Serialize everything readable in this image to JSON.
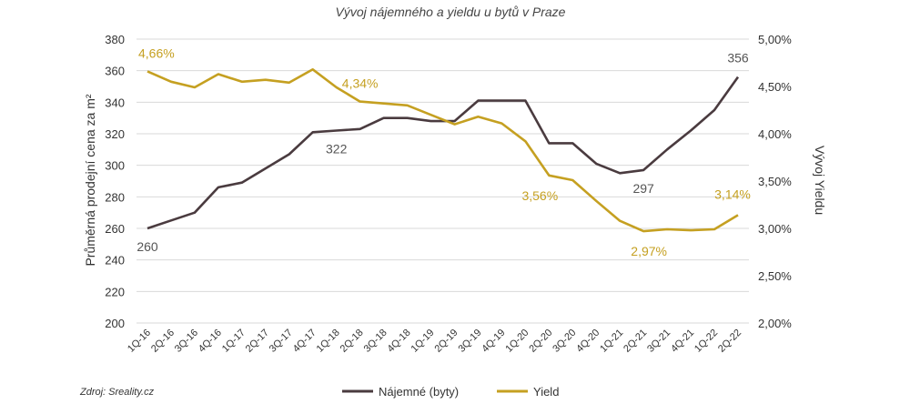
{
  "chart_data": {
    "type": "line",
    "title": "Vývoj nájemného a yieldu u bytů v Praze",
    "ylabel": "Průměrná prodejní cena za m²",
    "y2label": "Vývoj Yieldu",
    "source": "Zdroj: Sreality.cz",
    "x": [
      "1Q-16",
      "2Q-16",
      "3Q-16",
      "4Q-16",
      "1Q-17",
      "2Q-17",
      "3Q-17",
      "4Q-17",
      "1Q-18",
      "2Q-18",
      "3Q-18",
      "4Q-18",
      "1Q-19",
      "2Q-19",
      "3Q-19",
      "4Q-19",
      "1Q-20",
      "2Q-20",
      "3Q-20",
      "4Q-20",
      "1Q-21",
      "2Q-21",
      "3Q-21",
      "4Q-21",
      "1Q-22",
      "2Q-22"
    ],
    "ylim": [
      200,
      380
    ],
    "yticks": [
      "200",
      "220",
      "240",
      "260",
      "280",
      "300",
      "320",
      "340",
      "360",
      "380"
    ],
    "y2lim": [
      2.0,
      5.0
    ],
    "y2ticks": [
      "2,00%",
      "2,50%",
      "3,00%",
      "3,50%",
      "4,00%",
      "4,50%",
      "5,00%"
    ],
    "grid": true,
    "legend_position": "bottom",
    "series": [
      {
        "name": "Nájemné (byty)",
        "axis": "left",
        "color": "#4a3b3f",
        "values": [
          260,
          265,
          270,
          286,
          289,
          298,
          307,
          321,
          322,
          323,
          330,
          330,
          328,
          328,
          341,
          341,
          341,
          314,
          314,
          301,
          295,
          297,
          310,
          322,
          335,
          356
        ]
      },
      {
        "name": "Yield",
        "axis": "right",
        "color": "#c5a021",
        "values": [
          4.66,
          4.55,
          4.49,
          4.63,
          4.55,
          4.57,
          4.54,
          4.68,
          4.49,
          4.34,
          4.32,
          4.3,
          4.2,
          4.1,
          4.18,
          4.11,
          3.92,
          3.56,
          3.51,
          3.29,
          3.08,
          2.97,
          2.99,
          2.98,
          2.99,
          3.14
        ]
      }
    ],
    "annotations": [
      {
        "series": 0,
        "index": 0,
        "text": "260"
      },
      {
        "series": 0,
        "index": 8,
        "text": "322"
      },
      {
        "series": 0,
        "index": 21,
        "text": "297"
      },
      {
        "series": 0,
        "index": 25,
        "text": "356"
      },
      {
        "series": 1,
        "index": 0,
        "text": "4,66%"
      },
      {
        "series": 1,
        "index": 9,
        "text": "4,34%"
      },
      {
        "series": 1,
        "index": 17,
        "text": "3,56%"
      },
      {
        "series": 1,
        "index": 21,
        "text": "2,97%"
      },
      {
        "series": 1,
        "index": 25,
        "text": "3,14%"
      }
    ]
  }
}
